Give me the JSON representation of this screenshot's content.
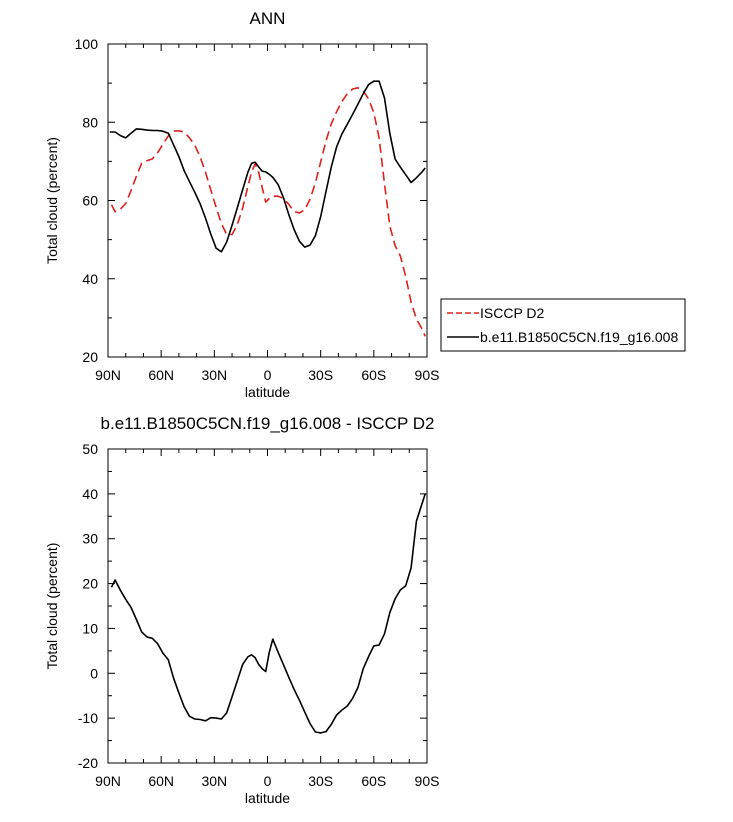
{
  "chart_data": [
    {
      "type": "line",
      "title": "ANN",
      "xlabel": "latitude",
      "ylabel": "Total cloud (percent)",
      "xlim": [
        90,
        -90
      ],
      "ylim": [
        20,
        100
      ],
      "xticks": [
        90,
        60,
        30,
        0,
        -30,
        -60,
        -90
      ],
      "xtick_labels": [
        "90N",
        "60N",
        "30N",
        "0",
        "30S",
        "60S",
        "90S"
      ],
      "yticks": [
        20,
        40,
        60,
        80,
        100
      ],
      "ytick_labels": [
        "20",
        "40",
        "60",
        "80",
        "100"
      ],
      "legend": {
        "placement": "right"
      },
      "series": [
        {
          "name": "ISCCP D2",
          "color": "#e0201c",
          "dash": "dashed",
          "x": [
            88,
            86,
            83,
            80,
            77,
            74,
            71,
            68,
            65,
            62,
            59,
            56,
            53,
            50,
            47,
            44,
            41,
            38,
            35,
            32,
            29,
            26,
            23,
            20,
            17,
            14,
            11,
            9,
            7,
            5,
            3,
            1,
            -1,
            -3,
            -6,
            -9,
            -12,
            -15,
            -18,
            -21,
            -24,
            -27,
            -30,
            -33,
            -36,
            -39,
            -42,
            -45,
            -48,
            -51,
            -54,
            -57,
            -60,
            -63,
            -66,
            -69,
            -72,
            -75,
            -78,
            -81,
            -84,
            -87,
            -89
          ],
          "y": [
            58.9,
            57.1,
            57.8,
            59.2,
            62.5,
            66.2,
            69.5,
            70.2,
            70.6,
            72.2,
            74.4,
            76.5,
            77.8,
            77.8,
            77.5,
            76.0,
            74.1,
            71.1,
            67.2,
            62.7,
            58.3,
            54.1,
            51.3,
            51.3,
            53.9,
            58.1,
            63.7,
            67.3,
            69.3,
            67.3,
            63.3,
            59.6,
            60.5,
            61.1,
            61.1,
            60.5,
            59.0,
            57.2,
            56.8,
            57.6,
            60.3,
            64.5,
            69.9,
            75.2,
            79.6,
            82.7,
            85.3,
            87.3,
            88.5,
            88.8,
            88.0,
            86.0,
            82.5,
            76.0,
            64.3,
            53.5,
            48.5,
            45.8,
            40.6,
            34.0,
            29.7,
            27.3,
            25.3
          ]
        },
        {
          "name": "b.e11.B1850C5CN.f19_g16.008",
          "color": "#000000",
          "dash": "solid",
          "x": [
            89,
            86,
            83,
            80,
            77,
            74,
            71,
            68,
            65,
            62,
            59,
            56,
            53,
            50,
            47,
            44,
            41,
            38,
            35,
            32,
            29,
            26,
            23,
            20,
            17,
            14,
            11,
            9,
            7,
            5,
            3,
            1,
            -1,
            -3,
            -6,
            -9,
            -12,
            -15,
            -18,
            -21,
            -24,
            -27,
            -30,
            -33,
            -36,
            -39,
            -42,
            -45,
            -48,
            -51,
            -54,
            -57,
            -60,
            -63,
            -66,
            -69,
            -72,
            -75,
            -78,
            -81,
            -84,
            -87,
            -89
          ],
          "y": [
            77.5,
            77.5,
            76.6,
            76.0,
            77.2,
            78.3,
            78.2,
            78.0,
            77.9,
            77.9,
            77.7,
            77.2,
            74.2,
            71.2,
            67.6,
            64.8,
            62.1,
            59.1,
            55.5,
            51.4,
            47.8,
            46.9,
            49.4,
            53.7,
            58.2,
            62.8,
            67.3,
            69.5,
            69.8,
            68.6,
            67.5,
            67.3,
            66.7,
            65.9,
            64.1,
            60.7,
            56.4,
            52.6,
            49.6,
            48.1,
            48.6,
            51.0,
            55.9,
            62.3,
            68.6,
            73.7,
            77.0,
            79.5,
            82.0,
            84.6,
            87.3,
            89.6,
            90.5,
            90.5,
            86.2,
            77.2,
            70.6,
            68.5,
            66.6,
            64.6,
            65.8,
            67.2,
            68.3
          ]
        }
      ]
    },
    {
      "type": "line",
      "title": "b.e11.B1850C5CN.f19_g16.008 - ISCCP D2",
      "xlabel": "latitude",
      "ylabel": "Total cloud (percent)",
      "xlim": [
        90,
        -90
      ],
      "ylim": [
        -20,
        50
      ],
      "xticks": [
        90,
        60,
        30,
        0,
        -30,
        -60,
        -90
      ],
      "xtick_labels": [
        "90N",
        "60N",
        "30N",
        "0",
        "30S",
        "60S",
        "90S"
      ],
      "yticks": [
        -20,
        -10,
        0,
        10,
        20,
        30,
        40,
        50
      ],
      "ytick_labels": [
        "-20",
        "-10",
        "0",
        "10",
        "20",
        "30",
        "40",
        "50"
      ],
      "series": [
        {
          "color": "#000000",
          "dash": "solid",
          "x": [
            88,
            86,
            83,
            80,
            77,
            74,
            71,
            68,
            65,
            62,
            59,
            56,
            53,
            50,
            47,
            44,
            41,
            38,
            35,
            32,
            29,
            26,
            23,
            20,
            17,
            14,
            11,
            9,
            7,
            5,
            3,
            1,
            -1,
            -3,
            -6,
            -9,
            -12,
            -15,
            -18,
            -21,
            -24,
            -27,
            -30,
            -33,
            -36,
            -39,
            -42,
            -45,
            -48,
            -51,
            -54,
            -57,
            -60,
            -63,
            -66,
            -69,
            -72,
            -75,
            -78,
            -81,
            -84,
            -87,
            -89
          ],
          "y": [
            19.2,
            20.8,
            18.5,
            16.5,
            14.7,
            12.0,
            9.2,
            8.1,
            7.8,
            6.6,
            4.5,
            3.0,
            -1.1,
            -4.4,
            -7.5,
            -9.6,
            -10.2,
            -10.3,
            -10.6,
            -9.9,
            -10.0,
            -10.2,
            -8.8,
            -5.2,
            -1.6,
            2.0,
            3.7,
            4.1,
            3.5,
            2.0,
            1.0,
            0.4,
            4.7,
            7.6,
            4.7,
            1.9,
            -0.9,
            -3.6,
            -6.0,
            -8.6,
            -11.2,
            -13.1,
            -13.3,
            -13.0,
            -11.4,
            -9.3,
            -8.2,
            -7.3,
            -5.6,
            -3.2,
            1.0,
            3.7,
            6.1,
            6.3,
            8.8,
            13.5,
            16.6,
            18.6,
            19.5,
            23.5,
            33.9,
            37.6,
            40.0
          ]
        }
      ]
    }
  ]
}
